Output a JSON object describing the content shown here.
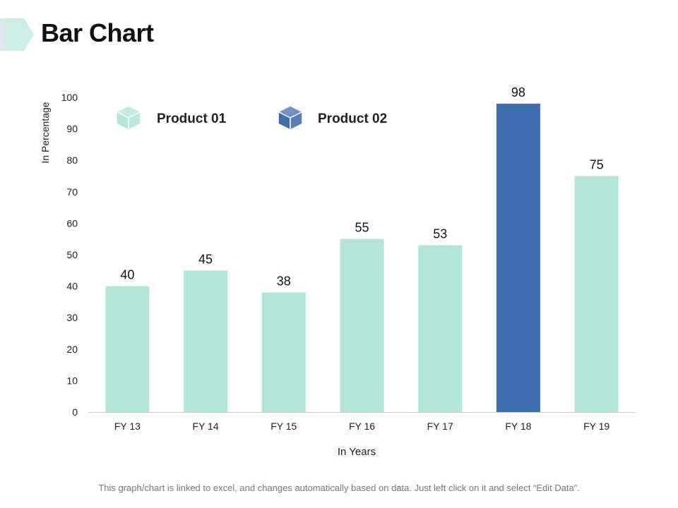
{
  "page": {
    "title": "Bar Chart",
    "footer": "This graph/chart is linked to excel, and changes automatically based on data. Just left click on it and select “Edit Data”."
  },
  "colors": {
    "product01": "#b3e6d8",
    "product02": "#3f6eae",
    "accent": "#cdeee6",
    "axis": "#cccccc",
    "text": "#111111"
  },
  "chart_data": {
    "type": "bar",
    "title": "",
    "xlabel": "In Years",
    "ylabel": "In Percentage",
    "ylim": [
      0,
      100
    ],
    "yticks": [
      0,
      10,
      20,
      30,
      40,
      50,
      60,
      70,
      80,
      90,
      100
    ],
    "categories": [
      "FY 13",
      "FY 14",
      "FY 15",
      "FY 16",
      "FY 17",
      "FY 18",
      "FY 19"
    ],
    "values": [
      40,
      45,
      38,
      55,
      53,
      98,
      75
    ],
    "series_assignment": [
      "Product 01",
      "Product 01",
      "Product 01",
      "Product 01",
      "Product 01",
      "Product 02",
      "Product 01"
    ],
    "legend": [
      {
        "name": "Product 01",
        "color": "#b3e6d8",
        "icon": "cube-icon"
      },
      {
        "name": "Product 02",
        "color": "#3f6eae",
        "icon": "cube-icon"
      }
    ],
    "legend_position": "top-left",
    "grid": false
  }
}
